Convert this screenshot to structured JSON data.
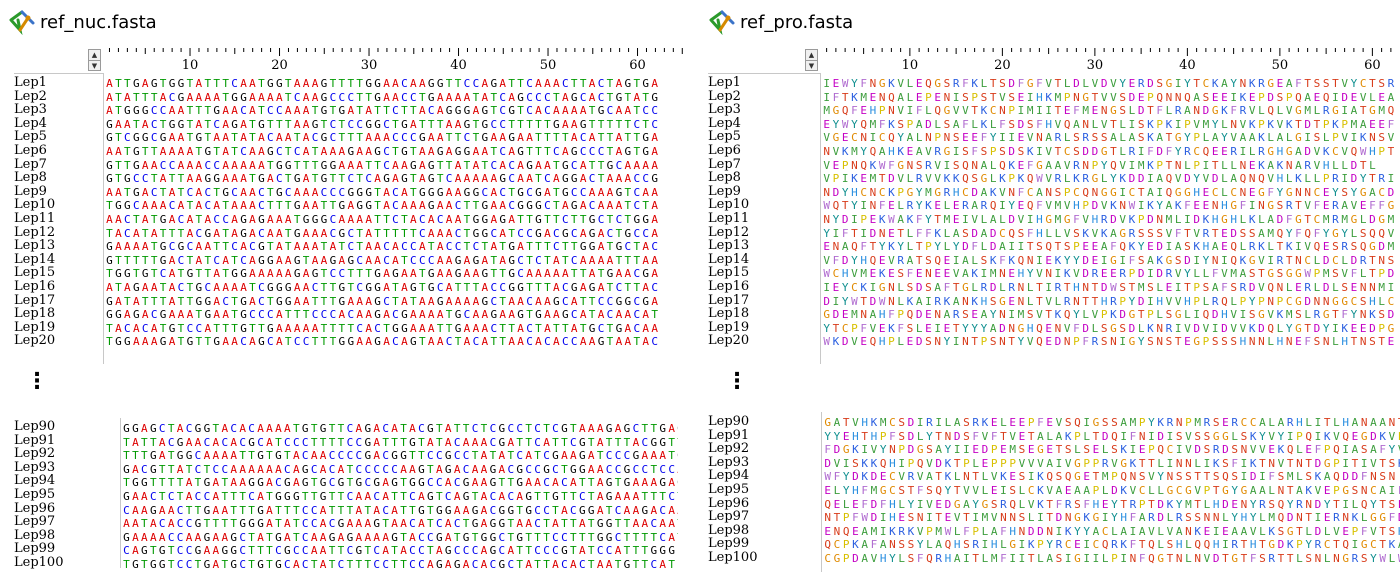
{
  "colors": {
    "A": "#dd0000",
    "T": "#009900",
    "G": "#000000",
    "C": "#0000ee",
    "other": "#000000"
  },
  "nuc": {
    "filename": "ref_nuc.fasta",
    "file_icon": "sequence-file-icon",
    "ruler_labels": [
      "10",
      "20",
      "30",
      "40",
      "50",
      "60"
    ],
    "names_top": [
      "Lep1",
      "Lep2",
      "Lep3",
      "Lep4",
      "Lep5",
      "Lep6",
      "Lep7",
      "Lep8",
      "Lep9",
      "Lep10",
      "Lep11",
      "Lep12",
      "Lep13",
      "Lep14",
      "Lep15",
      "Lep16",
      "Lep17",
      "Lep18",
      "Lep19",
      "Lep20"
    ],
    "seqs_top": [
      "ATTGAGTGGTATTTCAATGGTAAAGTTTTGGAACAAGGTTCCAGATTCAAACTTACTAGTGA",
      "ATATTTACGAAAATGGAAAATCAAGCCCTTGAACCTGAAAATATCAGCCCTAGCACTGTATG",
      "ATGGGCCAATTTGAACATCCAAATGTGATATTCTTACAGGGAGTCGTCACAAAATGCAATCC",
      "GAATACTGGTATCAGATGTTTAAGTCTCCGGCTGATTTAAGTGCCTTTTTGAAGTTTTTCTC",
      "GTCGGCGAATGTAATATACAATACGCTTTAAACCCGAATTCTGAAGAATTTTACATTATTGA",
      "AATGTTAAAATGTATCAAGCTCATAAAGAAGCTGTAAGAGGAATCAGTTTCAGCCCTAGTGA",
      "GTTGAACCAAACCAAAAATGGTTTGGAAATTCAAGAGTTATATCACAGAATGCATTGCAAAA",
      "GTGCCTATTAAGGAAATGACTGATGTTCTCAGAGTAGTCAAAAAGCAATCAGGACTAAACCG",
      "AATGACTATCACTGCAACTGCAAACCCGGGTACATGGGAAGGCACTGCGATGCCAAAGTCAA",
      "TGGCAAACATACATAAACTTTGAATTGAGGTACAAAGAACTTGAACGGGCTAGACAAATCTA",
      "AACTATGACATACCAGAGAAATGGGCAAAATTCTACACAATGGAGATTGTTCTTGCTCTGGA",
      "TACATATTTACGATAGACAATGAAACGCTATTTTTCAAACTGGCATCCGACGCAGACTGCCA",
      "GAAAATGCGCAATTCACGTATAAATATCTAACACCATACCTCTATGATTTCTTGGATGCTAC",
      "GTTTTTGACTATCATCAGGAAGTAAGAGCAACATCCCAAGAGATAGCTCTATCAAAATTTAA",
      "TGGTGTCATGTTATGGAAAAAGAGTCCTTTGAGAATGAAGAAGTTGCAAAAATTATGAACGA",
      "ATAGAATACTGCAAAATCGGGAACTTGTCGGATAGTGCATTTACCGGTTTACGAGATCTTAC",
      "GATATTTATTGGACTGACTGGAATTTGAAAGCTATAAGAAAAGCTAACAAGCATTCCGGCGA",
      "GGAGACGAAATGAATGCCCATTTCCCACAAGACGAAAATGCAAGAAGTGAAGCATACAACAT",
      "TACACATGTCCATTTGTTGAAAAATTTTCACTGGAAATTGAAACTTACTATTATGCTGACAA",
      "TGGAAAGATGTTGAACAGCATCCTTTGGAAGACAGTAACTACATTAACACACCAAGTAATAC"
    ],
    "names_bottom": [
      "Lep90",
      "Lep91",
      "Lep92",
      "Lep93",
      "Lep94",
      "Lep95",
      "Lep96",
      "Lep97",
      "Lep98",
      "Lep99",
      "Lep100"
    ],
    "seqs_bottom": [
      "GGAGCTACGGTACACAAAATGTGTTCAGACATACGTATTCTCGCCTCTCGTAAAGAGCTTGAG",
      "TATTACGAACACACGCATCCCTTTTCCGATTTGTATACAAACGATTCATTCGTATTTACGGTT",
      "TTTGATGGCAAAATTGTGTACAACCCCGACGGTTCCGCCTATATCATCGAAGATCCCGAAATG",
      "GACGTTATCTCCAAAAAACAGCACATCCCCCAAGTAGACAAGACGCCGCTGGAACCGCCTCCA",
      "TGGTTTTATGATAAGGACGAGTGCGTGCGAGTGGCCACGAAGTTGAACACATTAGTGAAAGAG",
      "GAACTCTACCATTTCATGGGTTGTTCAACATTCAGTCAGTACACAGTTGTTCTAGAAATTTCT",
      "CAAGAACTTGAATTTGATTTCCATTTATACATTGTGGAAGACGGTGCCTACGGATCAAGACAA",
      "AATACACCGTTTTGGGATATCCACGAAAGTAACATCACTGAGGTAACTATTATGGTTAACAAT",
      "GAAAACCAAGAAGCTATGATCAAGAGAAAAGTACCGATGTGGCTGTTTCCTTTGGCTTTTCAT",
      "CAGTGTCCGAAGGCTTTCGCCAATTCGTCATACCTAGCCCAGCATTCCCGTATCCATTTGGGC",
      "TGTGGTCCTGATGCTGTGCACTATCTTTCCTTCCAGAGACACGCTATTACACTAATGTTCATC"
    ],
    "ellipsis": "⋮"
  },
  "pro": {
    "filename": "ref_pro.fasta",
    "file_icon": "sequence-file-icon",
    "ruler_labels": [
      "10",
      "20",
      "30",
      "40",
      "50",
      "60"
    ],
    "names_top": [
      "Lep1",
      "Lep2",
      "Lep3",
      "Lep4",
      "Lep5",
      "Lep6",
      "Lep7",
      "Lep8",
      "Lep9",
      "Lep10",
      "Lep11",
      "Lep12",
      "Lep13",
      "Lep14",
      "Lep15",
      "Lep16",
      "Lep17",
      "Lep18",
      "Lep19",
      "Lep20"
    ],
    "seqs_top": [
      "IEWYFNGKVLEQGSRFKLTSDFGFVTLDLVDVYERDSGIYTCKAYNKRGEAFTSSTVYCTSR",
      "IFTKMENQALEPENISPSTVSEIHKMPNGTVVSDEPQNNQASEEIKEPDSPQAEQIDEVLEA",
      "MGQFEHPNVIFLQGVVTKCNPIMIITEFMENGSLDTFLRANDGKFRVLQLVGMLRGIATGMQ",
      "EYWYQMFKSPADLSAFLKLFSDSFHVQANLVTLISKPKIPVMYLNVKPKVKTDTPKPMAEEF",
      "VGECNICQYALNPNSEEFYIIEVNARLSRSSALASKATGYPLAYVAAKLALGISLPVIKNSV",
      "NVKMYQAHKEAVRGISFSPSDSKIVTCSDDGTLRIFDFYRCQEERILRGHGADVKCVQWHPT",
      "VEPNQKWFGNSRVISQNALQKEFGAAVRNPYQVIMKPTNLPITLLNEKAKNARVHLLDTL",
      "VPIKEMTDVLRVVKKQSGLKPKQWVRLKRGLYKDDIAQVDYVDLAQNQVHLKLLPRIDYTRI",
      "NDYHCNCKPGYMGRHCDAKVNFCANSPCQNGGICTAIQGGHECLCNEGFYGNNCEYSYGACD",
      "WQTYINFELRYKELERARQIYEQFVMVHPDVKNWIKYAKFEENHGFINGSRTVFERAVEFFG",
      "NYDIPEKWAKFYTMEIVLALDVIHGMGFVHRDVKPDNMLIDKHGHLKLADFGTCMRMGLDGM",
      "YIFTIDNETLFFKLASDADCQSFHLLVSKVKAGRSSSVFTVRTEDSSAMQYFQFYGYLSQQV",
      "ENAQFTYKYLTPYLYDFLDAIITSQTSPEEAFQKYEDIASKHAEQLRKLTKIVQESRSQGDM",
      "VFDYHQEVRATSQEIALSKFKQNIEKYYDEIGIFSAKGSDIYNIQKGVIRTNCLDCLDRTNS",
      "WCHVMEKESFENEEVAKIMNEHYVNIKVDREERPDIDRVYLLFVMASTGSGGWPMSVFLTPD",
      "IEYCKIGNLSDSAFTGLRDLRNLTIRTHNTDWSTMSLEITPSAFSRDVQNLERLDLSENNMI",
      "DIYWTDWNLKAIRKANKHSGENLTVLRNTTHRPYDIHVVHPLRQLPYPNPCGDNNGGCSHLC",
      "GDEMNAHFPQDENARSEAYNIMSVTKQYLVPKDGTPLSGLIQDHVISGVKMSLRGTFYNKSD",
      "YTCPFVEKFSLEIETYYYADNGHQENVFDLSGSDLKNRIVDVIDVVKDQLYGTDYIKEEDPG",
      "WKDVEQHPLEDSNYINTPSNTYVQEDNPFRSNIGYSNSTEGPSSSHNNLHNEFSNLHTNSTE"
    ],
    "names_bottom": [
      "Lep90",
      "Lep91",
      "Lep92",
      "Lep93",
      "Lep94",
      "Lep95",
      "Lep96",
      "Lep97",
      "Lep98",
      "Lep99",
      "Lep100"
    ],
    "seqs_bottom": [
      "GATVHKMCSDIRILASRKELEEPFEVSQIGSSAMPYKRNPMRSERCCALARHLITLHANAANT",
      "YYEHTHPFSDLYTNDSFVFTVETALAKPLTDQIFNIDISVSSGGLSKYVYIPQIKVQEGDKVP",
      "FDGKIVYNPDGSAYIIEDPEMSEGETSLSELSKIEPQCIVDSRDSNVVEKQLEFPQIASAFYV",
      "DVISKKQHIPQVDKTPLEPPPVVVAIVGPPRVGKTTLINNLIKSFIKTNVTNTDGPITIVTSK",
      "WFYDKDECVRVATKLNTLVKESIKQSQGETMPQNSVYNSSTTSQSIDIFSMLSKAQDDFNSN",
      "ELYHFMGCSTFSQYTVVLEISLCKVAEAAPLDKVCLLGCGVPTGYGAALNTAKVEPGSNCAIF",
      "QELEFDFHLYIVEDGAYGSRQLVKTFRSFHEYTRPTDKYMTLHDENYRSQYRNDYTILQYTSE",
      "NTPFWDIHESNITEVTIMVNNSLITDNGKGIYHFARDLRSSNNLYHYLMQDNTIERNKLGGFD",
      "ENQEAMIKRKVPMWLFPLAFHNDDNIKYYACLAIAVLVANKEIEAAVLKSGTLDLVEPFVTSH",
      "QCPKAFANSSYLAQHSRIHLGIKPYRCEICQRKFTQLSHLQQHIRTHTGDKPYRCTQIGCTKA",
      "CGPDAVHYLSFQRHAITLMFIITLASIGIILPINFQGTNLNVDTGTFSRTTLSNLNGRSYWLW"
    ],
    "ellipsis": "⋮"
  }
}
